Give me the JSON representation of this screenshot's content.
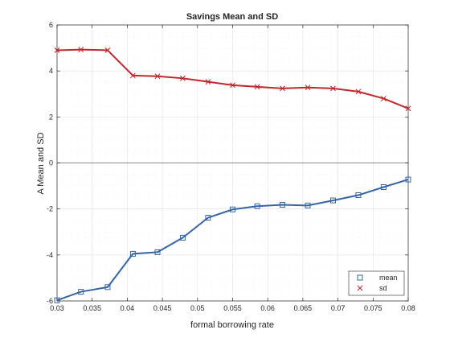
{
  "chart_data": {
    "type": "line",
    "title": "Savings Mean and SD",
    "xlabel": "formal borrowing rate",
    "ylabel": "A Mean and SD",
    "xlim": [
      0.03,
      0.08
    ],
    "ylim": [
      -6,
      6
    ],
    "x_ticks": [
      0.03,
      0.035,
      0.04,
      0.045,
      0.05,
      0.055,
      0.06,
      0.065,
      0.07,
      0.075,
      0.08
    ],
    "x_tick_labels": [
      "0.03",
      "0.035",
      "0.04",
      "0.045",
      "0.05",
      "0.055",
      "0.06",
      "0.065",
      "0.07",
      "0.075",
      "0.08"
    ],
    "y_ticks": [
      -6,
      -4,
      -2,
      0,
      2,
      4,
      6
    ],
    "y_tick_labels": [
      "-6",
      "-4",
      "-2",
      "0",
      "2",
      "4",
      "6"
    ],
    "grid": true,
    "minor_grid": true,
    "zero_line": true,
    "legend_position": "bottom-right",
    "x": [
      0.03,
      0.0334,
      0.0372,
      0.0408,
      0.0443,
      0.0479,
      0.0515,
      0.055,
      0.0585,
      0.0621,
      0.0657,
      0.0693,
      0.0729,
      0.0765,
      0.08
    ],
    "series": [
      {
        "name": "mean",
        "marker": "square",
        "color": "#3565a8",
        "values": [
          -5.97,
          -5.6,
          -5.4,
          -3.95,
          -3.88,
          -3.25,
          -2.38,
          -2.02,
          -1.88,
          -1.82,
          -1.85,
          -1.63,
          -1.4,
          -1.05,
          -0.72
        ]
      },
      {
        "name": "sd",
        "marker": "x",
        "color": "#c0282d",
        "values": [
          4.9,
          4.93,
          4.9,
          3.8,
          3.77,
          3.68,
          3.53,
          3.38,
          3.31,
          3.24,
          3.28,
          3.24,
          3.1,
          2.8,
          2.37
        ]
      }
    ]
  }
}
